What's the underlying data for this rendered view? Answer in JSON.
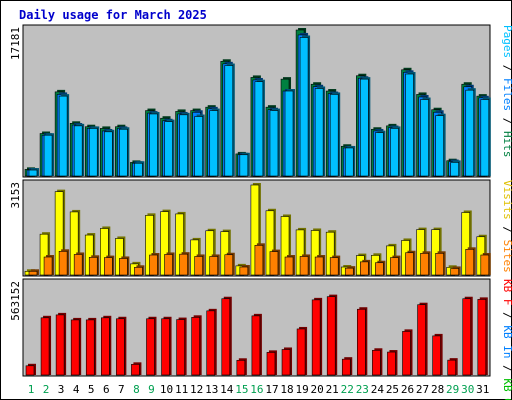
{
  "chart_data": {
    "type": "bar",
    "title": "Daily usage for March 2025",
    "categories": [
      "1",
      "2",
      "3",
      "4",
      "5",
      "6",
      "7",
      "8",
      "9",
      "10",
      "11",
      "12",
      "13",
      "14",
      "15",
      "16",
      "17",
      "18",
      "19",
      "20",
      "21",
      "22",
      "23",
      "24",
      "25",
      "26",
      "27",
      "28",
      "29",
      "30",
      "31"
    ],
    "weekend_days": [
      "1",
      "2",
      "8",
      "9",
      "15",
      "16",
      "22",
      "23",
      "29",
      "30"
    ],
    "panels": [
      {
        "id": "pages-files-hits",
        "ymax": 17181,
        "ymax_label": "17181",
        "legend": [
          {
            "text": "Pages",
            "color": "#00c0ff"
          },
          {
            "text": " / ",
            "color": "#000000"
          },
          {
            "text": "Files",
            "color": "#0080ff"
          },
          {
            "text": " / ",
            "color": "#000000"
          },
          {
            "text": "Hits",
            "color": "#008040"
          }
        ],
        "series": [
          {
            "key": "hits",
            "color": "#008040",
            "values": [
              780,
              5000,
              9900,
              6200,
              5800,
              5600,
              5800,
              1600,
              7700,
              6800,
              7600,
              7700,
              8100,
              13500,
              2600,
              11600,
              8100,
              11400,
              17181,
              10800,
              10000,
              3500,
              11800,
              5500,
              5900,
              12500,
              9600,
              7800,
              1800,
              10800,
              9400
            ]
          },
          {
            "key": "files",
            "color": "#0080ff",
            "values": [
              700,
              4800,
              9600,
              6000,
              5600,
              5300,
              5600,
              1500,
              7400,
              6500,
              7300,
              7500,
              7900,
              13200,
              2500,
              11300,
              7800,
              10000,
              16600,
              10500,
              9700,
              3300,
              11500,
              5300,
              5700,
              12200,
              9300,
              7500,
              1700,
              10500,
              9200
            ]
          },
          {
            "key": "pages",
            "color": "#00c0ff",
            "values": [
              700,
              4800,
              9400,
              5900,
              5600,
              5200,
              5500,
              1500,
              7300,
              6400,
              7200,
              7000,
              7700,
              13000,
              2500,
              11100,
              7700,
              10000,
              16300,
              10300,
              9600,
              3300,
              11400,
              5100,
              5600,
              12000,
              9000,
              7100,
              1600,
              10100,
              9000
            ]
          }
        ]
      },
      {
        "id": "visits-sites",
        "ymax": 3153,
        "ymax_label": "3153",
        "legend": [
          {
            "text": "Visits",
            "color": "#e0c000"
          },
          {
            "text": " / ",
            "color": "#000000"
          },
          {
            "text": "Sites",
            "color": "#ff8000"
          }
        ],
        "series": [
          {
            "key": "visits",
            "color": "#ffff00",
            "values": [
              130,
              1430,
              2920,
              2210,
              1400,
              1630,
              1280,
              390,
              2090,
              2220,
              2140,
              1230,
              1550,
              1520,
              320,
              3153,
              2250,
              2050,
              1580,
              1560,
              1500,
              280,
              680,
              690,
              1020,
              1210,
              1590,
              1590,
              270,
              2190,
              1340
            ]
          },
          {
            "key": "sites",
            "color": "#ff8000",
            "values": [
              130,
              630,
              830,
              720,
              620,
              610,
              580,
              270,
              700,
              720,
              730,
              650,
              650,
              710,
              280,
              1040,
              820,
              630,
              650,
              630,
              610,
              240,
              460,
              430,
              610,
              780,
              760,
              760,
              230,
              900,
              700
            ]
          }
        ]
      },
      {
        "id": "kbf",
        "ymax": 563152,
        "ymax_label": "563152",
        "legend": [
          {
            "text": "KB F",
            "color": "#ff0000"
          },
          {
            "text": " / ",
            "color": "#000000"
          },
          {
            "text": "KB In",
            "color": "#0080ff"
          },
          {
            "text": " / ",
            "color": "#000000"
          },
          {
            "text": "KB Out",
            "color": "#00c000"
          }
        ],
        "series": [
          {
            "key": "kbf",
            "color": "#ff0000",
            "values": [
              57000,
              354000,
              372000,
              341000,
              341000,
              354000,
              348000,
              66000,
              348000,
              348000,
              343000,
              357000,
              397000,
              472000,
              91000,
              366000,
              140000,
              158000,
              285000,
              465000,
              485000,
              98000,
              407000,
              153000,
              142000,
              270000,
              435000,
              242000,
              92000,
              472000,
              468000
            ]
          }
        ]
      }
    ]
  }
}
